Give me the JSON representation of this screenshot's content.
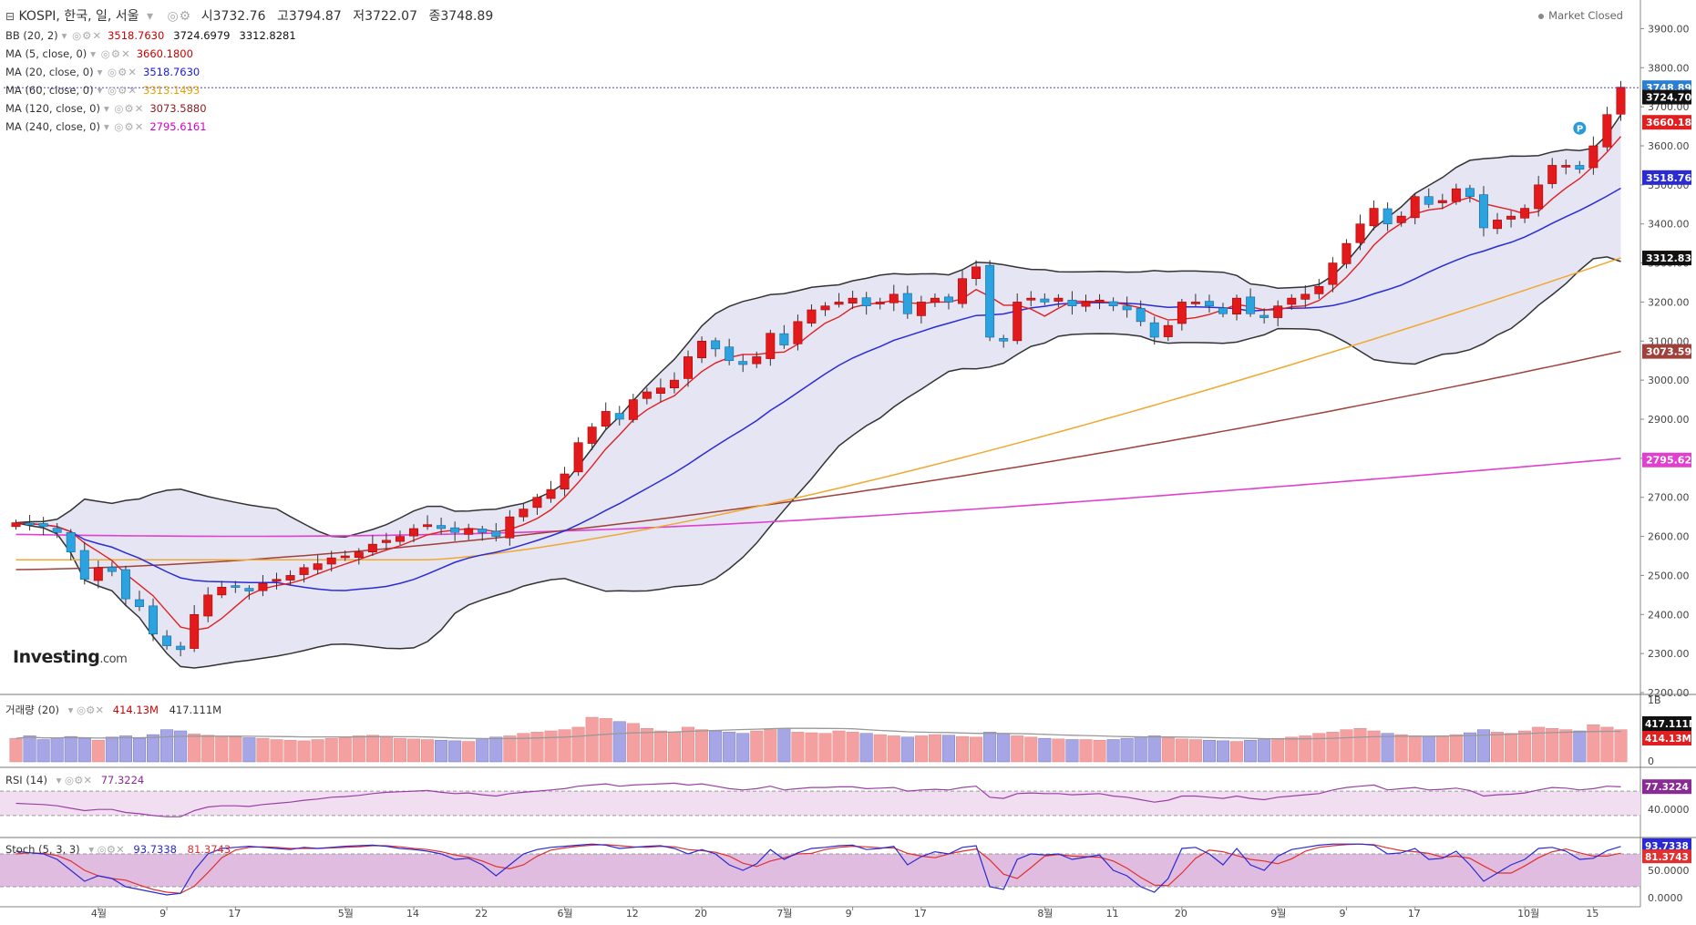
{
  "header": {
    "symbol_line": "KOSPI, 한국, 일, 서울",
    "open_label": "시",
    "open": "3732.76",
    "high_label": "고",
    "high": "3794.87",
    "low_label": "저",
    "low": "3722.07",
    "close_label": "종",
    "close": "3748.89",
    "status": "Market Closed"
  },
  "indicators": [
    {
      "label": "BB (20, 2)",
      "values": [
        "3518.7630",
        "3724.6979",
        "3312.8281"
      ],
      "colors": [
        "#cc0000",
        "#111111",
        "#111111"
      ]
    },
    {
      "label": "MA (5, close, 0)",
      "values": [
        "3660.1800"
      ],
      "colors": [
        "#cc0000"
      ]
    },
    {
      "label": "MA (20, close, 0)",
      "values": [
        "3518.7630"
      ],
      "colors": [
        "#1a1adb"
      ]
    },
    {
      "label": "MA (60, close, 0)",
      "values": [
        "3313.1493"
      ],
      "colors": [
        "#e8a000"
      ]
    },
    {
      "label": "MA (120, close, 0)",
      "values": [
        "3073.5880"
      ],
      "colors": [
        "#8b1a1a"
      ]
    },
    {
      "label": "MA (240, close, 0)",
      "values": [
        "2795.6161"
      ],
      "colors": [
        "#d400c8"
      ]
    }
  ],
  "logo": {
    "text": "Investing",
    "suffix": ".com"
  },
  "volume_legend": {
    "label": "거래량 (20)",
    "v1": "414.13M",
    "v2": "417.111M"
  },
  "rsi_legend": {
    "label": "RSI (14)",
    "v1": "77.3224"
  },
  "stoch_legend": {
    "label": "Stoch (5, 3, 3)",
    "v1": "93.7338",
    "v2": "81.3743"
  },
  "colors": {
    "up": "#e31a1c",
    "down": "#2aa3e0",
    "bb_fill": "#e5e5f3",
    "bb_line": "#333333",
    "ma5": "#e02020",
    "ma20": "#2b2bd6",
    "ma60": "#f0a830",
    "ma120": "#a0403a",
    "ma240": "#e040d0",
    "vol_up": "#f4a0a0",
    "vol_down": "#a6a6e6",
    "rsi": "#9a3fa6",
    "rsi_fill": "#f1dff1",
    "stoch_k": "#2a2ad0",
    "stoch_d": "#e03030",
    "stoch_fill": "#e0bde0"
  },
  "chart_data": {
    "type": "candlestick",
    "title": "KOSPI, 한국, 일, 서울",
    "ylim": [
      2200,
      3950
    ],
    "y_ticks": [
      "2200.00",
      "2300.00",
      "2400.00",
      "2500.00",
      "2600.00",
      "2700.00",
      "2800.00",
      "2900.00",
      "3000.00",
      "3100.00",
      "3200.00",
      "3300.00",
      "3400.00",
      "3500.00",
      "3600.00",
      "3700.00",
      "3800.00",
      "3900.00"
    ],
    "x_labels": [
      {
        "label": "4월",
        "index": 6
      },
      {
        "label": "9",
        "index": 11
      },
      {
        "label": "17",
        "index": 16
      },
      {
        "label": "5월",
        "index": 24
      },
      {
        "label": "14",
        "index": 29
      },
      {
        "label": "22",
        "index": 34
      },
      {
        "label": "6월",
        "index": 40
      },
      {
        "label": "12",
        "index": 45
      },
      {
        "label": "20",
        "index": 50
      },
      {
        "label": "7월",
        "index": 56
      },
      {
        "label": "9",
        "index": 61
      },
      {
        "label": "17",
        "index": 66
      },
      {
        "label": "8월",
        "index": 75
      },
      {
        "label": "11",
        "index": 80
      },
      {
        "label": "20",
        "index": 85
      },
      {
        "label": "9월",
        "index": 92
      },
      {
        "label": "9",
        "index": 97
      },
      {
        "label": "17",
        "index": 102
      },
      {
        "label": "10월",
        "index": 110
      },
      {
        "label": "15",
        "index": 115
      }
    ],
    "close": [
      2635,
      2630,
      2625,
      2610,
      2560,
      2490,
      2520,
      2510,
      2440,
      2420,
      2350,
      2320,
      2310,
      2400,
      2450,
      2470,
      2470,
      2460,
      2480,
      2490,
      2500,
      2520,
      2530,
      2545,
      2550,
      2560,
      2580,
      2590,
      2600,
      2620,
      2630,
      2620,
      2610,
      2620,
      2610,
      2600,
      2650,
      2670,
      2700,
      2720,
      2760,
      2840,
      2880,
      2920,
      2900,
      2950,
      2970,
      2980,
      3000,
      3060,
      3100,
      3080,
      3050,
      3040,
      3060,
      3120,
      3090,
      3150,
      3180,
      3190,
      3200,
      3210,
      3190,
      3200,
      3220,
      3170,
      3200,
      3210,
      3200,
      3260,
      3290,
      3110,
      3100,
      3200,
      3210,
      3200,
      3210,
      3190,
      3200,
      3205,
      3190,
      3180,
      3150,
      3110,
      3140,
      3200,
      3200,
      3190,
      3170,
      3210,
      3170,
      3160,
      3190,
      3210,
      3220,
      3240,
      3300,
      3350,
      3400,
      3440,
      3400,
      3420,
      3470,
      3450,
      3460,
      3490,
      3470,
      3390,
      3410,
      3420,
      3440,
      3500,
      3550,
      3550,
      3540,
      3600,
      3680,
      3750
    ],
    "ohlc_note": "close values estimated from candle bodies",
    "series": [
      {
        "name": "BB (20, 2)",
        "values_last": [
          3518.763,
          3724.6979,
          3312.8281
        ]
      },
      {
        "name": "MA (5, close, 0)",
        "last": 3660.18
      },
      {
        "name": "MA (20, close, 0)",
        "last": 3518.763
      },
      {
        "name": "MA (60, close, 0)",
        "last": 3313.1493
      },
      {
        "name": "MA (120, close, 0)",
        "last": 3073.588
      },
      {
        "name": "MA (240, close, 0)",
        "last": 2795.6161
      }
    ],
    "price_tags": [
      {
        "value": 3748.89,
        "text": "3748.89",
        "color": "#2a7fd0"
      },
      {
        "value": 3724.7,
        "text": "3724.70",
        "color": "#111111"
      },
      {
        "value": 3660.18,
        "text": "3660.18",
        "color": "#e02020"
      },
      {
        "value": 3518.76,
        "text": "3518.76",
        "color": "#2b2bd6"
      },
      {
        "value": 3313.15,
        "text": "3313.15",
        "color": "#f0a830"
      },
      {
        "value": 3312.83,
        "text": "3312.83",
        "color": "#111111"
      },
      {
        "value": 3073.59,
        "text": "3073.59",
        "color": "#a0403a"
      },
      {
        "value": 2795.62,
        "text": "2795.62",
        "color": "#e040d0"
      }
    ],
    "volume": {
      "ylim_label_top": "1B",
      "tags": [
        {
          "text": "417.111M",
          "color": "#111111"
        },
        {
          "text": "414.13M",
          "color": "#e02020"
        }
      ],
      "zero_label": "0",
      "values": [
        380,
        420,
        360,
        390,
        410,
        380,
        350,
        400,
        420,
        380,
        440,
        520,
        500,
        450,
        430,
        410,
        400,
        390,
        380,
        360,
        350,
        340,
        360,
        380,
        400,
        420,
        430,
        410,
        380,
        370,
        360,
        350,
        340,
        330,
        360,
        400,
        420,
        460,
        480,
        500,
        520,
        560,
        720,
        700,
        650,
        620,
        540,
        500,
        480,
        560,
        520,
        500,
        480,
        460,
        500,
        520,
        540,
        480,
        470,
        460,
        500,
        480,
        460,
        440,
        420,
        400,
        420,
        440,
        430,
        410,
        400,
        480,
        460,
        420,
        400,
        380,
        370,
        360,
        360,
        350,
        360,
        380,
        400,
        420,
        390,
        370,
        360,
        350,
        340,
        330,
        350,
        360,
        380,
        400,
        420,
        460,
        480,
        520,
        540,
        500,
        460,
        440,
        420,
        410,
        420,
        440,
        470,
        520,
        480,
        460,
        500,
        560,
        540,
        520,
        500,
        600,
        560,
        520
      ]
    },
    "rsi": {
      "last_text": "77.3224",
      "tick": "40.0000",
      "levels": [
        70,
        30
      ],
      "ylim": [
        0,
        100
      ],
      "values": [
        50,
        49,
        48,
        46,
        42,
        38,
        40,
        40,
        35,
        33,
        30,
        28,
        28,
        38,
        44,
        46,
        46,
        45,
        48,
        50,
        52,
        55,
        57,
        60,
        61,
        63,
        66,
        68,
        69,
        70,
        71,
        68,
        66,
        67,
        64,
        62,
        66,
        68,
        70,
        72,
        74,
        78,
        80,
        82,
        78,
        80,
        81,
        82,
        83,
        80,
        82,
        78,
        74,
        72,
        74,
        78,
        72,
        74,
        76,
        76,
        77,
        77,
        74,
        75,
        76,
        70,
        72,
        73,
        72,
        76,
        78,
        60,
        58,
        66,
        67,
        66,
        66,
        64,
        65,
        66,
        62,
        60,
        56,
        52,
        55,
        62,
        62,
        60,
        58,
        62,
        58,
        56,
        60,
        62,
        64,
        66,
        72,
        76,
        78,
        80,
        72,
        74,
        76,
        72,
        73,
        75,
        71,
        62,
        64,
        65,
        67,
        72,
        76,
        75,
        72,
        74,
        78,
        77
      ]
    },
    "stoch": {
      "last_k_text": "93.7338",
      "last_d_text": "81.3743",
      "ticks": [
        "50.0000",
        "0.0000"
      ],
      "levels": [
        80,
        20
      ],
      "ylim": [
        0,
        100
      ],
      "k": [
        85,
        82,
        80,
        70,
        50,
        30,
        40,
        35,
        20,
        15,
        10,
        5,
        8,
        50,
        80,
        90,
        92,
        94,
        92,
        90,
        88,
        92,
        90,
        92,
        94,
        95,
        96,
        94,
        90,
        88,
        85,
        80,
        70,
        72,
        60,
        40,
        60,
        80,
        88,
        92,
        94,
        96,
        98,
        96,
        90,
        92,
        94,
        95,
        90,
        80,
        88,
        80,
        60,
        50,
        62,
        88,
        70,
        82,
        90,
        92,
        95,
        96,
        88,
        90,
        94,
        60,
        75,
        84,
        80,
        92,
        95,
        20,
        15,
        70,
        80,
        78,
        80,
        70,
        74,
        78,
        50,
        40,
        20,
        10,
        35,
        90,
        92,
        80,
        60,
        90,
        60,
        50,
        76,
        88,
        92,
        96,
        98,
        98,
        98,
        96,
        80,
        82,
        90,
        70,
        72,
        85,
        60,
        30,
        45,
        60,
        70,
        90,
        92,
        85,
        70,
        72,
        86,
        93.7
      ],
      "d": [
        80,
        82,
        81,
        77,
        67,
        50,
        40,
        35,
        32,
        23,
        15,
        10,
        8,
        21,
        46,
        73,
        87,
        92,
        93,
        92,
        90,
        90,
        90,
        91,
        92,
        93,
        95,
        95,
        93,
        90,
        88,
        84,
        78,
        74,
        67,
        57,
        53,
        60,
        76,
        87,
        91,
        94,
        96,
        97,
        95,
        93,
        92,
        94,
        93,
        88,
        86,
        83,
        76,
        63,
        57,
        67,
        73,
        80,
        81,
        88,
        92,
        94,
        93,
        91,
        91,
        81,
        76,
        73,
        80,
        85,
        89,
        69,
        43,
        35,
        55,
        76,
        79,
        76,
        75,
        74,
        67,
        54,
        37,
        23,
        22,
        45,
        72,
        87,
        84,
        77,
        70,
        67,
        62,
        71,
        85,
        92,
        95,
        97,
        98,
        97,
        91,
        86,
        84,
        81,
        74,
        76,
        72,
        58,
        45,
        45,
        58,
        73,
        84,
        89,
        82,
        76,
        76,
        81.4
      ]
    }
  }
}
